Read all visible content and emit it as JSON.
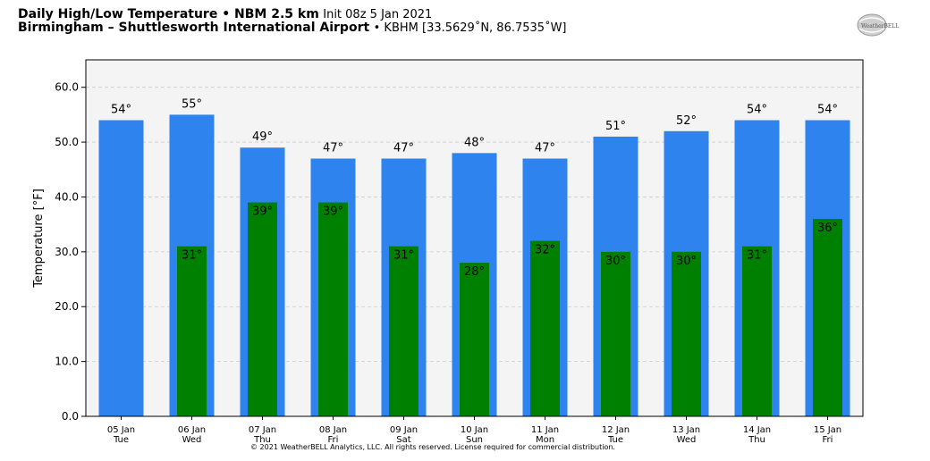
{
  "header": {
    "title_bold": "Daily High/Low Temperature • NBM 2.5 km",
    "title_init": "Init 08z 5 Jan 2021",
    "location_bold": "Birmingham – Shuttlesworth International Airport",
    "location_detail": "• KBHM [33.5629˚N, 86.7535˚W]"
  },
  "logo": {
    "text": "WeatherBELL"
  },
  "footer": {
    "copyright": "© 2021 WeatherBELL Analytics, LLC. All rights reserved. License required for commercial distribution."
  },
  "chart_data": {
    "type": "bar",
    "title": "Daily High/Low Temperature • NBM 2.5 km",
    "ylabel": "Temperature [°F]",
    "xlabel": "",
    "ylim": [
      0,
      65
    ],
    "yticks": [
      "0.0",
      "10.0",
      "20.0",
      "30.0",
      "40.0",
      "50.0",
      "60.0"
    ],
    "grid": true,
    "categories": [
      "05 Jan",
      "06 Jan",
      "07 Jan",
      "08 Jan",
      "09 Jan",
      "10 Jan",
      "11 Jan",
      "12 Jan",
      "13 Jan",
      "14 Jan",
      "15 Jan"
    ],
    "weekdays": [
      "Tue",
      "Wed",
      "Thu",
      "Fri",
      "Sat",
      "Sun",
      "Mon",
      "Tue",
      "Wed",
      "Thu",
      "Fri"
    ],
    "series": [
      {
        "values": [
          54,
          55,
          49,
          47,
          47,
          48,
          47,
          51,
          52,
          54,
          54
        ],
        "labels": [
          "54°",
          "55°",
          "49°",
          "47°",
          "47°",
          "48°",
          "47°",
          "51°",
          "52°",
          "54°",
          "54°"
        ],
        "color": "#2e83ee"
      },
      {
        "values": [
          null,
          31,
          39,
          39,
          31,
          28,
          32,
          30,
          30,
          31,
          36
        ],
        "labels": [
          "",
          "31°",
          "39°",
          "39°",
          "31°",
          "28°",
          "32°",
          "30°",
          "30°",
          "31°",
          "36°"
        ],
        "color": "#008000"
      }
    ],
    "background": "#f4f4f4"
  }
}
